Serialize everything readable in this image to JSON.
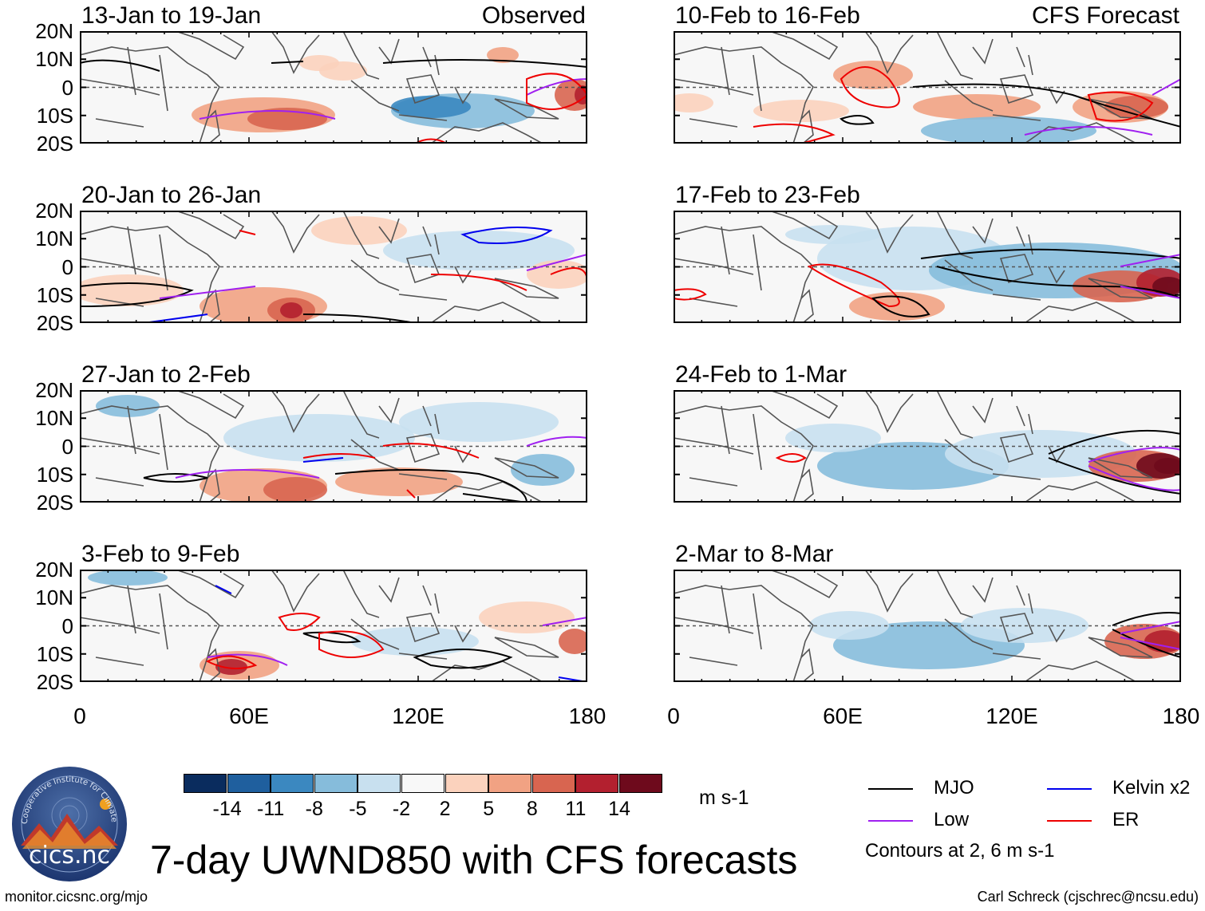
{
  "panels": [
    {
      "title": "13-Jan to 19-Jan",
      "label": "Observed"
    },
    {
      "title": "10-Feb to 16-Feb",
      "label": "CFS Forecast"
    },
    {
      "title": "20-Jan to 26-Jan",
      "label": ""
    },
    {
      "title": "17-Feb to 23-Feb",
      "label": ""
    },
    {
      "title": "27-Jan to 2-Feb",
      "label": ""
    },
    {
      "title": "24-Feb to 1-Mar",
      "label": ""
    },
    {
      "title": "3-Feb to 9-Feb",
      "label": ""
    },
    {
      "title": "2-Mar to 8-Mar",
      "label": ""
    }
  ],
  "y_ticks": [
    "20N",
    "10N",
    "0",
    "10S",
    "20S"
  ],
  "x_ticks": [
    "0",
    "60E",
    "120E",
    "180"
  ],
  "colorbar": {
    "labels": [
      "-14",
      "-11",
      "-8",
      "-5",
      "-2",
      "2",
      "5",
      "8",
      "11",
      "14"
    ],
    "colors": [
      "#0a2c5e",
      "#1f5f9e",
      "#3b88c0",
      "#86bcdb",
      "#c8e0ef",
      "#f8f8f8",
      "#fbd2bd",
      "#f1a283",
      "#d86550",
      "#b3202f",
      "#6e0a1c"
    ],
    "unit": "m s-1"
  },
  "legend": {
    "items": [
      {
        "label": "MJO",
        "color": "#000000"
      },
      {
        "label": "Kelvin x2",
        "color": "#0000ee"
      },
      {
        "label": "Low",
        "color": "#a020f0"
      },
      {
        "label": "ER",
        "color": "#ee0000"
      }
    ],
    "note": "Contours at 2, 6 m s-1"
  },
  "title": "7-day UWND850 with CFS forecasts",
  "footer_left": "monitor.cicsnc.org/mjo",
  "footer_right": "Carl Schreck (cjschrec@ncsu.edu)",
  "logo": {
    "text": "cics.nc",
    "ring_text": "Cooperative Institute for Climate and Satellites"
  }
}
